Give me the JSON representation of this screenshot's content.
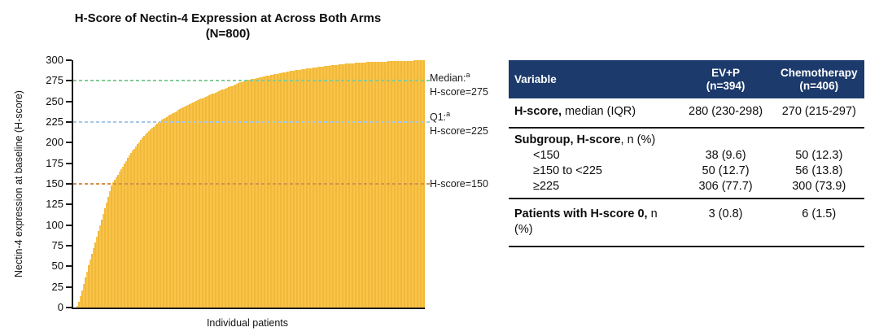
{
  "chart": {
    "title_line1": "H-Score of Nectin-4 Expression at Across Both Arms",
    "title_line2": "(N=800)"
  },
  "chart_data": {
    "type": "bar",
    "title": "H-Score of Nectin-4 Expression at Across Both Arms (N=800)",
    "xlabel": "Individual patients",
    "ylabel": "Nectin-4 expression at baseline (H-score)",
    "ylim": [
      0,
      300
    ],
    "yticks": [
      0,
      25,
      50,
      75,
      100,
      125,
      150,
      175,
      200,
      225,
      250,
      275,
      300
    ],
    "n_patients": 800,
    "bar_color": "#F9C548",
    "bar_color_alt": "#F1B83C",
    "series_description": "Ascending sorted baseline H-scores of 800 individual patients (cumulative-percentile -> H-score curve)",
    "cdf_points": [
      [
        0,
        0
      ],
      [
        1,
        0
      ],
      [
        1.5,
        5
      ],
      [
        2.5,
        20
      ],
      [
        4,
        45
      ],
      [
        6,
        75
      ],
      [
        8,
        105
      ],
      [
        10,
        135
      ],
      [
        11,
        150
      ],
      [
        13,
        163
      ],
      [
        16,
        185
      ],
      [
        20,
        208
      ],
      [
        24.3,
        225
      ],
      [
        28,
        235
      ],
      [
        33,
        247
      ],
      [
        40,
        260
      ],
      [
        48.6,
        275
      ],
      [
        55,
        281
      ],
      [
        62,
        287
      ],
      [
        70,
        292
      ],
      [
        78,
        296
      ],
      [
        85,
        298
      ],
      [
        93,
        299
      ],
      [
        100,
        300
      ]
    ],
    "reference_lines": [
      {
        "name": "median",
        "value": 275,
        "color": "#82CC96",
        "label": "Median:",
        "sup": "a",
        "sublabel": "H-score=275"
      },
      {
        "name": "q1",
        "value": 225,
        "color": "#A8C8E8",
        "label": "Q1:",
        "sup": "a",
        "sublabel": "H-score=225"
      },
      {
        "name": "h150",
        "value": 150,
        "color": "#D4924E",
        "label": "",
        "sup": "",
        "sublabel": "H-score=150"
      }
    ]
  },
  "table": {
    "header": {
      "variable": "Variable",
      "evp_line1": "EV+P",
      "evp_line2": "(n=394)",
      "chemo_line1": "Chemotherapy",
      "chemo_line2": "(n=406)",
      "bg_color": "#1C3A6B",
      "text_color": "#FFFFFF"
    },
    "rows": [
      {
        "label_bold": "H-score,",
        "label_rest": " median (IQR)",
        "evp": "280 (230-298)",
        "chemo": "270 (215-297)"
      },
      {
        "label_bold": "Subgroup, H-score",
        "label_rest": ", n (%)",
        "evp": "",
        "chemo": ""
      },
      {
        "label_bold": "",
        "label_rest": "<150",
        "evp": "38 (9.6)",
        "chemo": "50 (12.3)"
      },
      {
        "label_bold": "",
        "label_rest": "≥150 to <225",
        "evp": "50 (12.7)",
        "chemo": "56 (13.8)"
      },
      {
        "label_bold": "",
        "label_rest": "≥225",
        "evp": "306 (77.7)",
        "chemo": "300 (73.9)"
      },
      {
        "label_bold": "Patients with H-score 0,",
        "label_rest": " n (%)",
        "evp": "3 (0.8)",
        "chemo": "6 (1.5)"
      }
    ]
  }
}
